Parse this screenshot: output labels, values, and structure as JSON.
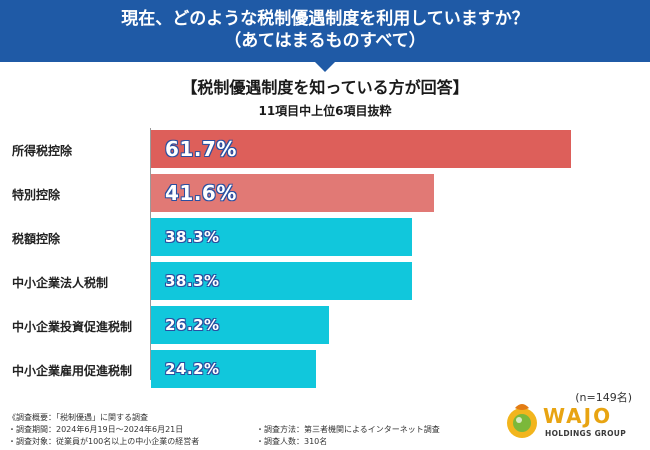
{
  "header": {
    "line1": "現在、どのような税制優遇制度を利用していますか？",
    "line2": "（あてはまるものすべて）"
  },
  "subtitle": "【税制優遇制度を知っている方が回答】",
  "subsubtitle": "11項目中上位6項目抜粋",
  "chart_data": {
    "type": "bar",
    "orientation": "horizontal",
    "title": "現在、どのような税制優遇制度を利用していますか？（あてはまるものすべて）",
    "categories": [
      "所得税控除",
      "特別控除",
      "税額控除",
      "中小企業法人税制",
      "中小企業投資促進税制",
      "中小企業雇用促進税制"
    ],
    "values": [
      61.7,
      41.6,
      38.3,
      38.3,
      26.2,
      24.2
    ],
    "value_labels": [
      "61.7%",
      "41.6%",
      "38.3%",
      "38.3%",
      "26.2%",
      "24.2%"
    ],
    "unit": "%",
    "xlim": [
      0,
      66
    ],
    "colors": [
      "#dd5f5a",
      "#e17975",
      "#11c7dc",
      "#11c7dc",
      "#11c7dc",
      "#11c7dc"
    ],
    "grid": false
  },
  "sample_size": "(n=149名)",
  "footer": {
    "overview": "《調査概要：「税制優遇」に関する調査",
    "period": "・調査期間：2024年6月19日〜2024年6月21日",
    "target": "・調査対象：従業員が100名以上の中小企業の経営者",
    "method": "・調査方法：第三者機関によるインターネット調査",
    "count": "・調査人数：310名"
  },
  "logo": {
    "word": "WAJO",
    "sub": "HOLDINGS GROUP"
  }
}
